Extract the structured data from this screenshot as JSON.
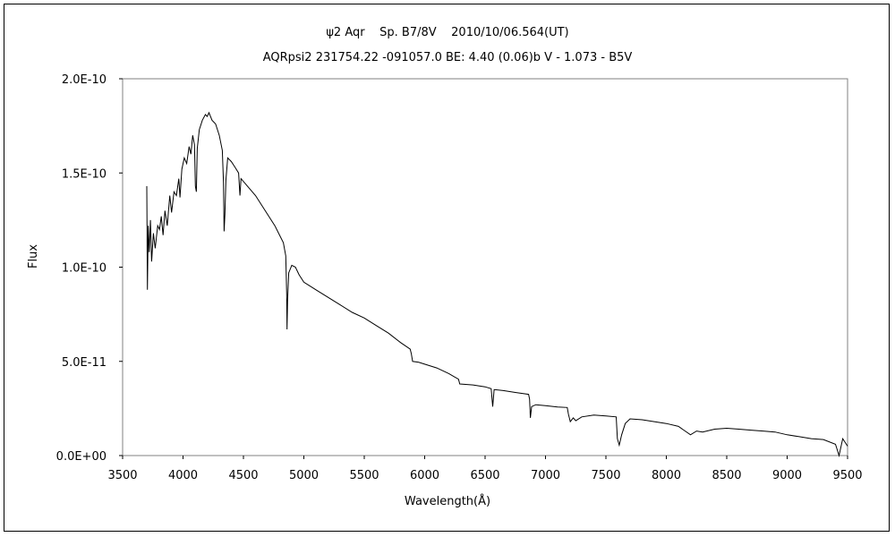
{
  "chart_data": {
    "type": "line",
    "title": "ψ2 Aqr    Sp. B7/8V    2010/10/06.564(UT)",
    "subtitle": "AQRpsi2 231754.22 -091057.0 BE: 4.40 (0.06)b V - 1.073 - B5V",
    "xlabel": "Wavelength(Å)",
    "ylabel": "Flux",
    "xlim": [
      3500,
      9500
    ],
    "ylim": [
      0,
      2e-10
    ],
    "x_ticks": [
      3500,
      4000,
      4500,
      5000,
      5500,
      6000,
      6500,
      7000,
      7500,
      8000,
      8500,
      9000,
      9500
    ],
    "x_tick_labels": [
      "3500",
      "4000",
      "4500",
      "5000",
      "5500",
      "6000",
      "6500",
      "7000",
      "7500",
      "8000",
      "8500",
      "9000",
      "9500"
    ],
    "y_ticks": [
      0,
      5e-11,
      1e-10,
      1.5e-10,
      2e-10
    ],
    "y_tick_labels": [
      "0.0E+00",
      "5.0E-11",
      "1.0E-10",
      "1.5E-10",
      "2.0E-10"
    ],
    "grid": false,
    "series": [
      {
        "color": "#000000",
        "points": [
          [
            3700,
            1.43e-10
          ],
          [
            3705,
            8.8e-11
          ],
          [
            3712,
            1.22e-10
          ],
          [
            3720,
            1.08e-10
          ],
          [
            3730,
            1.25e-10
          ],
          [
            3740,
            1.03e-10
          ],
          [
            3755,
            1.18e-10
          ],
          [
            3770,
            1.1e-10
          ],
          [
            3790,
            1.22e-10
          ],
          [
            3805,
            1.2e-10
          ],
          [
            3820,
            1.27e-10
          ],
          [
            3835,
            1.17e-10
          ],
          [
            3850,
            1.3e-10
          ],
          [
            3870,
            1.22e-10
          ],
          [
            3890,
            1.38e-10
          ],
          [
            3905,
            1.29e-10
          ],
          [
            3925,
            1.4e-10
          ],
          [
            3945,
            1.38e-10
          ],
          [
            3965,
            1.47e-10
          ],
          [
            3975,
            1.37e-10
          ],
          [
            3990,
            1.52e-10
          ],
          [
            4010,
            1.58e-10
          ],
          [
            4030,
            1.55e-10
          ],
          [
            4050,
            1.64e-10
          ],
          [
            4065,
            1.6e-10
          ],
          [
            4080,
            1.7e-10
          ],
          [
            4095,
            1.65e-10
          ],
          [
            4102,
            1.43e-10
          ],
          [
            4110,
            1.4e-10
          ],
          [
            4118,
            1.63e-10
          ],
          [
            4135,
            1.73e-10
          ],
          [
            4160,
            1.78e-10
          ],
          [
            4185,
            1.81e-10
          ],
          [
            4200,
            1.8e-10
          ],
          [
            4215,
            1.82e-10
          ],
          [
            4240,
            1.78e-10
          ],
          [
            4270,
            1.76e-10
          ],
          [
            4300,
            1.7e-10
          ],
          [
            4325,
            1.62e-10
          ],
          [
            4335,
            1.45e-10
          ],
          [
            4340,
            1.19e-10
          ],
          [
            4347,
            1.28e-10
          ],
          [
            4355,
            1.46e-10
          ],
          [
            4370,
            1.58e-10
          ],
          [
            4400,
            1.56e-10
          ],
          [
            4430,
            1.53e-10
          ],
          [
            4460,
            1.5e-10
          ],
          [
            4471,
            1.38e-10
          ],
          [
            4480,
            1.47e-10
          ],
          [
            4520,
            1.44e-10
          ],
          [
            4600,
            1.38e-10
          ],
          [
            4680,
            1.3e-10
          ],
          [
            4760,
            1.22e-10
          ],
          [
            4830,
            1.13e-10
          ],
          [
            4850,
            1.06e-10
          ],
          [
            4858,
            8.6e-11
          ],
          [
            4861,
            6.7e-11
          ],
          [
            4865,
            8.2e-11
          ],
          [
            4875,
            9.7e-11
          ],
          [
            4900,
            1.01e-10
          ],
          [
            4930,
            1e-10
          ],
          [
            4960,
            9.6e-11
          ],
          [
            5000,
            9.2e-11
          ],
          [
            5050,
            9e-11
          ],
          [
            5100,
            8.8e-11
          ],
          [
            5200,
            8.4e-11
          ],
          [
            5300,
            8e-11
          ],
          [
            5400,
            7.6e-11
          ],
          [
            5500,
            7.3e-11
          ],
          [
            5600,
            6.9e-11
          ],
          [
            5700,
            6.5e-11
          ],
          [
            5800,
            6e-11
          ],
          [
            5880,
            5.65e-11
          ],
          [
            5890,
            5.4e-11
          ],
          [
            5900,
            5e-11
          ],
          [
            5950,
            4.95e-11
          ],
          [
            6000,
            4.85e-11
          ],
          [
            6100,
            4.65e-11
          ],
          [
            6200,
            4.35e-11
          ],
          [
            6280,
            4.05e-11
          ],
          [
            6290,
            3.8e-11
          ],
          [
            6400,
            3.75e-11
          ],
          [
            6500,
            3.65e-11
          ],
          [
            6550,
            3.55e-11
          ],
          [
            6563,
            2.6e-11
          ],
          [
            6575,
            3.5e-11
          ],
          [
            6650,
            3.45e-11
          ],
          [
            6750,
            3.35e-11
          ],
          [
            6860,
            3.25e-11
          ],
          [
            6868,
            3e-11
          ],
          [
            6875,
            2e-11
          ],
          [
            6885,
            2.6e-11
          ],
          [
            6920,
            2.7e-11
          ],
          [
            7000,
            2.65e-11
          ],
          [
            7100,
            2.58e-11
          ],
          [
            7180,
            2.55e-11
          ],
          [
            7190,
            2.2e-11
          ],
          [
            7205,
            1.8e-11
          ],
          [
            7230,
            2e-11
          ],
          [
            7250,
            1.85e-11
          ],
          [
            7300,
            2.05e-11
          ],
          [
            7400,
            2.15e-11
          ],
          [
            7500,
            2.1e-11
          ],
          [
            7585,
            2.05e-11
          ],
          [
            7595,
            9e-12
          ],
          [
            7610,
            5.5e-12
          ],
          [
            7630,
            1.1e-11
          ],
          [
            7660,
            1.7e-11
          ],
          [
            7700,
            1.95e-11
          ],
          [
            7800,
            1.9e-11
          ],
          [
            7900,
            1.8e-11
          ],
          [
            8000,
            1.7e-11
          ],
          [
            8100,
            1.55e-11
          ],
          [
            8200,
            1.1e-11
          ],
          [
            8250,
            1.3e-11
          ],
          [
            8300,
            1.25e-11
          ],
          [
            8400,
            1.4e-11
          ],
          [
            8500,
            1.45e-11
          ],
          [
            8600,
            1.4e-11
          ],
          [
            8700,
            1.35e-11
          ],
          [
            8800,
            1.3e-11
          ],
          [
            8900,
            1.25e-11
          ],
          [
            9000,
            1.1e-11
          ],
          [
            9100,
            1e-11
          ],
          [
            9200,
            9e-12
          ],
          [
            9300,
            8.5e-12
          ],
          [
            9400,
            6e-12
          ],
          [
            9430,
            0.0
          ],
          [
            9460,
            9e-12
          ],
          [
            9500,
            5e-12
          ]
        ]
      }
    ]
  }
}
